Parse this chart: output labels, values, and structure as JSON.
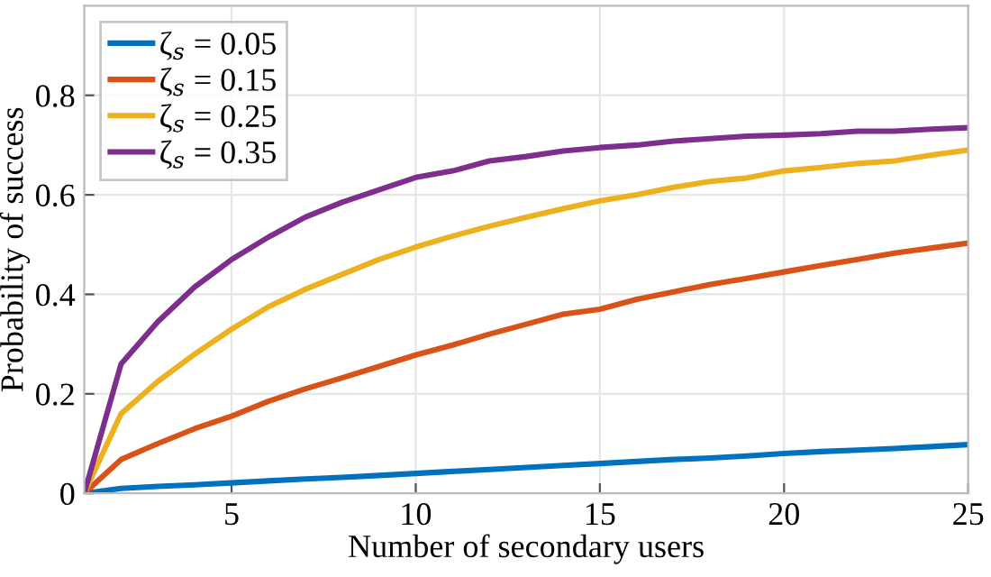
{
  "chart_data": {
    "type": "line",
    "xlabel": "Number of secondary users",
    "ylabel": "Probability of success",
    "x": [
      1,
      2,
      3,
      4,
      5,
      6,
      7,
      8,
      9,
      10,
      11,
      12,
      13,
      14,
      15,
      16,
      17,
      18,
      19,
      20,
      21,
      22,
      23,
      24,
      25
    ],
    "series": [
      {
        "name": "ζ$_{s}$ = 0.05",
        "color": "#0072bd",
        "values": [
          0,
          0.01,
          0.014,
          0.017,
          0.021,
          0.025,
          0.029,
          0.032,
          0.036,
          0.04,
          0.044,
          0.048,
          0.052,
          0.056,
          0.06,
          0.064,
          0.068,
          0.071,
          0.075,
          0.08,
          0.084,
          0.087,
          0.09,
          0.094,
          0.098
        ]
      },
      {
        "name": "ζ$_{s}$ = 0.15",
        "color": "#d95319",
        "values": [
          0,
          0.068,
          0.1,
          0.13,
          0.155,
          0.185,
          0.21,
          0.232,
          0.255,
          0.278,
          0.298,
          0.32,
          0.34,
          0.36,
          0.37,
          0.39,
          0.405,
          0.42,
          0.432,
          0.445,
          0.458,
          0.47,
          0.483,
          0.493,
          0.503
        ]
      },
      {
        "name": "ζ$_{s}$ = 0.25",
        "color": "#edb120",
        "values": [
          0,
          0.16,
          0.225,
          0.28,
          0.33,
          0.375,
          0.41,
          0.44,
          0.47,
          0.495,
          0.517,
          0.537,
          0.555,
          0.572,
          0.588,
          0.6,
          0.615,
          0.627,
          0.634,
          0.648,
          0.655,
          0.663,
          0.668,
          0.68,
          0.69
        ]
      },
      {
        "name": "ζ$_{s}$ = 0.35",
        "color": "#7e2f8e",
        "values": [
          0,
          0.26,
          0.345,
          0.415,
          0.47,
          0.515,
          0.555,
          0.585,
          0.61,
          0.635,
          0.648,
          0.668,
          0.677,
          0.688,
          0.695,
          0.7,
          0.708,
          0.713,
          0.718,
          0.72,
          0.723,
          0.728,
          0.728,
          0.732,
          0.735
        ]
      }
    ],
    "xlim": [
      1,
      25
    ],
    "xticks": [
      5,
      10,
      15,
      20,
      25
    ],
    "ylim": [
      0,
      0.98
    ],
    "yticks": [
      0,
      0.2,
      0.4,
      0.6,
      0.8
    ],
    "grid": true,
    "legend": "top left",
    "marker": "none",
    "line_style": "solid"
  }
}
